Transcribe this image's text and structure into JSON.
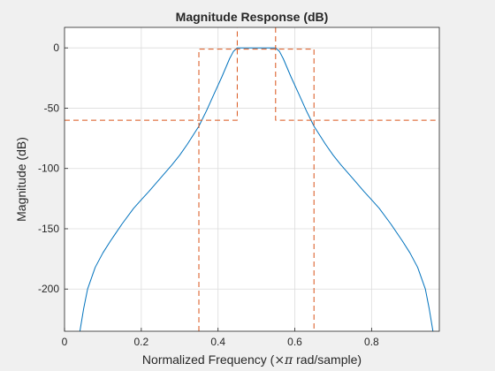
{
  "chart_data": {
    "type": "line",
    "title": "Magnitude Response (dB)",
    "xlabel_prefix": "Normalized Frequency  (",
    "xlabel_times_pi": "×π",
    "xlabel_suffix": " rad/sample)",
    "ylabel": "Magnitude (dB)",
    "xlim": [
      0,
      0.9765
    ],
    "ylim": [
      -235,
      17
    ],
    "xticks": [
      0,
      0.2,
      0.4,
      0.6,
      0.8
    ],
    "xtick_labels": [
      "0",
      "0.2",
      "0.4",
      "0.6",
      "0.8"
    ],
    "yticks": [
      0,
      -50,
      -100,
      -150,
      -200
    ],
    "ytick_labels": [
      "0",
      "-50",
      "-100",
      "-150",
      "-200"
    ],
    "grid": true,
    "series": [
      {
        "style": "solid",
        "color": "#0072bd",
        "x": [
          0.04,
          0.05,
          0.06,
          0.08,
          0.1,
          0.12,
          0.15,
          0.18,
          0.2,
          0.22,
          0.25,
          0.28,
          0.3,
          0.32,
          0.35,
          0.37,
          0.39,
          0.41,
          0.43,
          0.44,
          0.45,
          0.46,
          0.48,
          0.5,
          0.52,
          0.54,
          0.55,
          0.56,
          0.57,
          0.59,
          0.61,
          0.63,
          0.65,
          0.68,
          0.7,
          0.72,
          0.75,
          0.78,
          0.8,
          0.82,
          0.85,
          0.88,
          0.9,
          0.92,
          0.94,
          0.95,
          0.96
        ],
        "y": [
          -235,
          -216,
          -200,
          -182,
          -170,
          -160,
          -146,
          -133,
          -126,
          -119,
          -108,
          -97,
          -89,
          -80,
          -65,
          -52,
          -38,
          -24,
          -9,
          -3,
          0,
          0,
          0,
          0,
          0,
          0,
          0,
          -3,
          -9,
          -24,
          -38,
          -52,
          -65,
          -80,
          -89,
          -97,
          -108,
          -119,
          -126,
          -133,
          -146,
          -160,
          -170,
          -182,
          -200,
          -216,
          -235
        ]
      },
      {
        "style": "dashed",
        "color": "#d95319",
        "x": [
          0,
          0.45,
          0.45
        ],
        "y": [
          -60,
          -60,
          17
        ]
      },
      {
        "style": "dashed",
        "color": "#d95319",
        "x": [
          0.35,
          0.35,
          0.65,
          0.65
        ],
        "y": [
          -235,
          -1,
          -1,
          -235
        ]
      },
      {
        "style": "dashed",
        "color": "#d95319",
        "x": [
          0.55,
          0.55,
          0.9765
        ],
        "y": [
          17,
          -60,
          -60
        ]
      }
    ]
  },
  "colors": {
    "figure_bg": "#f0f0f0",
    "axes_bg": "#ffffff",
    "grid": "#dcdcdc",
    "axis": "#262626"
  }
}
